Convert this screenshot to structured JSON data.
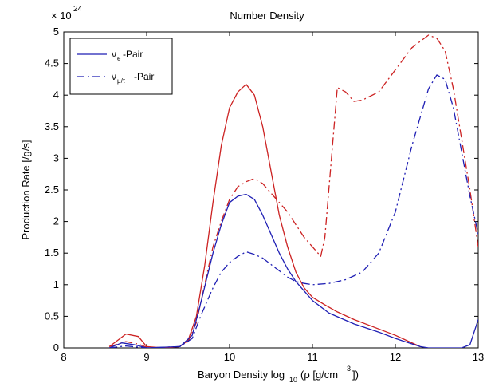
{
  "chart_data": {
    "type": "line",
    "title": "Number Density",
    "exponent_label": "× 10",
    "exponent_power": "24",
    "xlabel": "Baryon Density log",
    "xlabel_sub": "10",
    "xlabel_tail": "(ρ [g/cm",
    "xlabel_sup": "3",
    "xlabel_end": "])",
    "ylabel": "Production Rate [/g/s]",
    "xlim": [
      8,
      13
    ],
    "ylim": [
      0,
      5
    ],
    "x_ticks": [
      "8",
      "9",
      "10",
      "11",
      "12",
      "13"
    ],
    "y_ticks": [
      "0",
      "0.5",
      "1",
      "1.5",
      "2",
      "2.5",
      "3",
      "3.5",
      "4",
      "4.5",
      "5"
    ],
    "grid": false,
    "legend_position": "top-left",
    "legend": [
      {
        "symbol": "ν",
        "sub": "e",
        "suffix": "-Pair",
        "style": "solid",
        "color": "#1f1fb4"
      },
      {
        "symbol": "ν",
        "sub": "μ/τ",
        "suffix": "-Pair",
        "style": "dash-dot",
        "color": "#1f1fb4"
      }
    ],
    "series": [
      {
        "color": "#cc2222",
        "style": "solid",
        "points": [
          [
            8.55,
            0.02
          ],
          [
            8.75,
            0.22
          ],
          [
            8.9,
            0.18
          ],
          [
            9.0,
            0.02
          ],
          [
            9.2,
            0.0
          ],
          [
            9.4,
            0.02
          ],
          [
            9.5,
            0.12
          ],
          [
            9.6,
            0.5
          ],
          [
            9.7,
            1.3
          ],
          [
            9.8,
            2.3
          ],
          [
            9.9,
            3.2
          ],
          [
            10.0,
            3.8
          ],
          [
            10.1,
            4.05
          ],
          [
            10.2,
            4.17
          ],
          [
            10.3,
            4.0
          ],
          [
            10.4,
            3.5
          ],
          [
            10.5,
            2.8
          ],
          [
            10.6,
            2.1
          ],
          [
            10.7,
            1.6
          ],
          [
            10.8,
            1.2
          ],
          [
            10.9,
            0.95
          ],
          [
            11.0,
            0.8
          ],
          [
            11.15,
            0.68
          ],
          [
            11.3,
            0.57
          ],
          [
            11.5,
            0.45
          ],
          [
            11.7,
            0.35
          ],
          [
            12.0,
            0.2
          ],
          [
            12.3,
            0.02
          ]
        ]
      },
      {
        "color": "#cc2222",
        "style": "dash-dot",
        "points": [
          [
            8.55,
            0.02
          ],
          [
            8.75,
            0.1
          ],
          [
            8.9,
            0.06
          ],
          [
            9.0,
            0.01
          ],
          [
            9.2,
            0.0
          ],
          [
            9.4,
            0.02
          ],
          [
            9.5,
            0.1
          ],
          [
            9.6,
            0.4
          ],
          [
            9.7,
            1.0
          ],
          [
            9.8,
            1.6
          ],
          [
            9.9,
            2.0
          ],
          [
            10.0,
            2.35
          ],
          [
            10.1,
            2.55
          ],
          [
            10.2,
            2.63
          ],
          [
            10.3,
            2.68
          ],
          [
            10.4,
            2.6
          ],
          [
            10.5,
            2.45
          ],
          [
            10.6,
            2.3
          ],
          [
            10.7,
            2.15
          ],
          [
            10.8,
            1.95
          ],
          [
            10.9,
            1.75
          ],
          [
            11.0,
            1.6
          ],
          [
            11.1,
            1.45
          ],
          [
            11.15,
            1.75
          ],
          [
            11.3,
            4.12
          ],
          [
            11.4,
            4.05
          ],
          [
            11.5,
            3.9
          ],
          [
            11.6,
            3.92
          ],
          [
            11.8,
            4.05
          ],
          [
            12.0,
            4.4
          ],
          [
            12.2,
            4.75
          ],
          [
            12.4,
            4.95
          ],
          [
            12.5,
            4.9
          ],
          [
            12.6,
            4.7
          ],
          [
            12.7,
            4.1
          ],
          [
            12.8,
            3.3
          ],
          [
            12.9,
            2.5
          ],
          [
            13.0,
            1.6
          ]
        ]
      },
      {
        "color": "#1f1fb4",
        "style": "solid",
        "points": [
          [
            8.55,
            0.0
          ],
          [
            8.7,
            0.08
          ],
          [
            8.85,
            0.05
          ],
          [
            9.0,
            0.0
          ],
          [
            9.4,
            0.02
          ],
          [
            9.55,
            0.2
          ],
          [
            9.65,
            0.7
          ],
          [
            9.8,
            1.5
          ],
          [
            9.9,
            1.95
          ],
          [
            10.0,
            2.3
          ],
          [
            10.1,
            2.4
          ],
          [
            10.2,
            2.43
          ],
          [
            10.3,
            2.35
          ],
          [
            10.4,
            2.1
          ],
          [
            10.5,
            1.8
          ],
          [
            10.6,
            1.5
          ],
          [
            10.7,
            1.25
          ],
          [
            10.8,
            1.05
          ],
          [
            10.9,
            0.9
          ],
          [
            11.0,
            0.75
          ],
          [
            11.2,
            0.55
          ],
          [
            11.5,
            0.38
          ],
          [
            11.8,
            0.25
          ],
          [
            12.0,
            0.15
          ],
          [
            12.3,
            0.02
          ],
          [
            12.4,
            0.0
          ],
          [
            12.8,
            0.0
          ],
          [
            12.9,
            0.05
          ],
          [
            13.0,
            0.45
          ]
        ]
      },
      {
        "color": "#1f1fb4",
        "style": "dash-dot",
        "points": [
          [
            8.55,
            0.0
          ],
          [
            8.75,
            0.03
          ],
          [
            9.0,
            0.0
          ],
          [
            9.4,
            0.02
          ],
          [
            9.55,
            0.15
          ],
          [
            9.65,
            0.5
          ],
          [
            9.8,
            0.95
          ],
          [
            9.9,
            1.2
          ],
          [
            10.0,
            1.35
          ],
          [
            10.1,
            1.45
          ],
          [
            10.2,
            1.52
          ],
          [
            10.3,
            1.48
          ],
          [
            10.4,
            1.42
          ],
          [
            10.5,
            1.32
          ],
          [
            10.6,
            1.22
          ],
          [
            10.7,
            1.12
          ],
          [
            10.8,
            1.05
          ],
          [
            10.9,
            1.02
          ],
          [
            11.0,
            1.0
          ],
          [
            11.2,
            1.02
          ],
          [
            11.4,
            1.08
          ],
          [
            11.6,
            1.2
          ],
          [
            11.8,
            1.5
          ],
          [
            12.0,
            2.15
          ],
          [
            12.2,
            3.2
          ],
          [
            12.4,
            4.1
          ],
          [
            12.5,
            4.32
          ],
          [
            12.6,
            4.25
          ],
          [
            12.7,
            3.8
          ],
          [
            12.8,
            3.1
          ],
          [
            12.9,
            2.4
          ],
          [
            13.0,
            1.8
          ]
        ]
      }
    ]
  }
}
